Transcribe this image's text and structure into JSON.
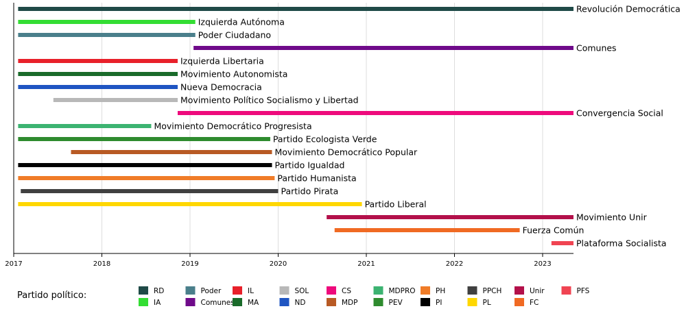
{
  "legend_title": "Partido político:",
  "chart_data": {
    "type": "timeline",
    "x_axis": {
      "ticks": [
        "2017",
        "2018",
        "2019",
        "2020",
        "2021",
        "2022",
        "2023"
      ],
      "range": [
        2017.0,
        2023.35
      ],
      "grid": true
    },
    "bars": [
      {
        "label": "Revolución Democrática",
        "start": 2017.05,
        "end": 2023.35,
        "color": "#1f4a47"
      },
      {
        "label": "Izquierda Autónoma",
        "start": 2017.05,
        "end": 2019.06,
        "color": "#33dd33"
      },
      {
        "label": "Poder Ciudadano",
        "start": 2017.05,
        "end": 2019.06,
        "color": "#4a7f8b"
      },
      {
        "label": "Comunes",
        "start": 2019.04,
        "end": 2023.35,
        "color": "#6f0a8a"
      },
      {
        "label": "Izquierda Libertaria",
        "start": 2017.05,
        "end": 2018.86,
        "color": "#e8202a"
      },
      {
        "label": "Movimiento Autonomista",
        "start": 2017.05,
        "end": 2018.86,
        "color": "#1a6b2a"
      },
      {
        "label": "Nueva Democracia",
        "start": 2017.05,
        "end": 2018.86,
        "color": "#1f55c2"
      },
      {
        "label": "Movimiento Político Socialismo y Libertad",
        "start": 2017.45,
        "end": 2018.86,
        "color": "#b8b8b8"
      },
      {
        "label": "Convergencia Social",
        "start": 2018.86,
        "end": 2023.35,
        "color": "#ee0a7c"
      },
      {
        "label": "Movimiento Democrático Progresista",
        "start": 2017.05,
        "end": 2018.56,
        "color": "#3cb371"
      },
      {
        "label": "Partido Ecologista Verde",
        "start": 2017.05,
        "end": 2019.91,
        "color": "#2e8b2e"
      },
      {
        "label": "Movimiento Democrático Popular",
        "start": 2017.65,
        "end": 2019.93,
        "color": "#b85a24"
      },
      {
        "label": "Partido Igualdad",
        "start": 2017.05,
        "end": 2019.93,
        "color": "#000000"
      },
      {
        "label": "Partido Humanista",
        "start": 2017.05,
        "end": 2019.96,
        "color": "#f07c28"
      },
      {
        "label": "Partido Pirata",
        "start": 2017.08,
        "end": 2020.0,
        "color": "#404040"
      },
      {
        "label": "Partido Liberal",
        "start": 2017.05,
        "end": 2020.95,
        "color": "#ffd700"
      },
      {
        "label": "Movimiento Unir",
        "start": 2020.55,
        "end": 2023.35,
        "color": "#b3104a"
      },
      {
        "label": "Fuerza Común",
        "start": 2020.64,
        "end": 2022.74,
        "color": "#f06a23"
      },
      {
        "label": "Plataforma Socialista",
        "start": 2023.1,
        "end": 2023.35,
        "color": "#f04452"
      }
    ],
    "legend": [
      {
        "abbr": "RD",
        "color": "#1f4a47"
      },
      {
        "abbr": "IA",
        "color": "#33dd33"
      },
      {
        "abbr": "Poder",
        "color": "#4a7f8b"
      },
      {
        "abbr": "Comunes",
        "color": "#6f0a8a"
      },
      {
        "abbr": "IL",
        "color": "#e8202a"
      },
      {
        "abbr": "MA",
        "color": "#1a6b2a"
      },
      {
        "abbr": "SOL",
        "color": "#b8b8b8"
      },
      {
        "abbr": "ND",
        "color": "#1f55c2"
      },
      {
        "abbr": "CS",
        "color": "#ee0a7c"
      },
      {
        "abbr": "MDP",
        "color": "#b85a24"
      },
      {
        "abbr": "MDPRO",
        "color": "#3cb371"
      },
      {
        "abbr": "PEV",
        "color": "#2e8b2e"
      },
      {
        "abbr": "PH",
        "color": "#f07c28"
      },
      {
        "abbr": "PI",
        "color": "#000000"
      },
      {
        "abbr": "PPCH",
        "color": "#404040"
      },
      {
        "abbr": "PL",
        "color": "#ffd700"
      },
      {
        "abbr": "Unir",
        "color": "#b3104a"
      },
      {
        "abbr": "FC",
        "color": "#f06a23"
      },
      {
        "abbr": "PFS",
        "color": "#f04452"
      }
    ]
  }
}
